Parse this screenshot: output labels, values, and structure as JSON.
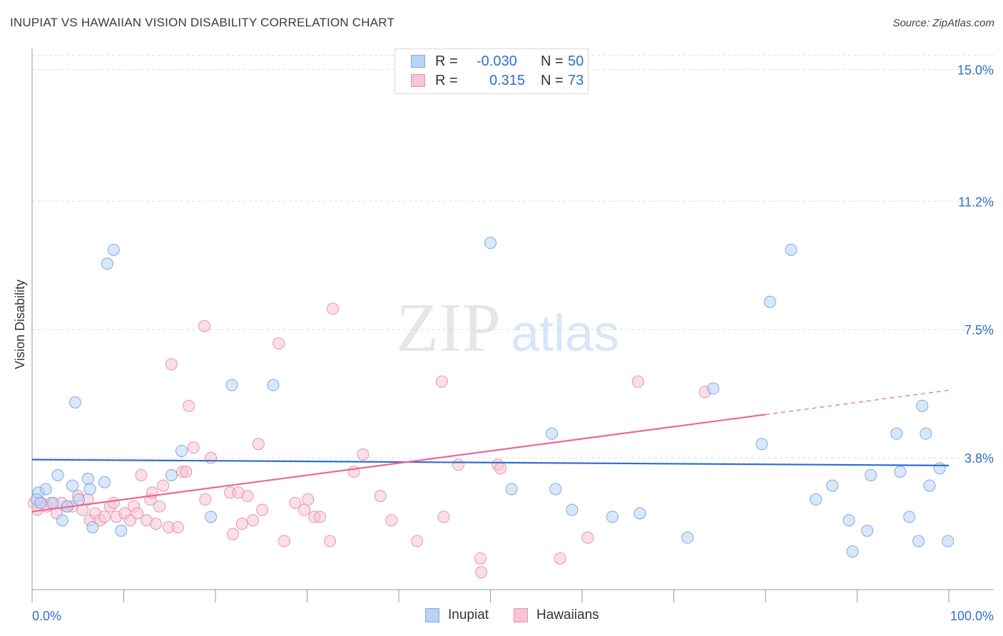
{
  "header": {
    "title": "INUPIAT VS HAWAIIAN VISION DISABILITY CORRELATION CHART",
    "source": "Source: ZipAtlas.com"
  },
  "watermark": {
    "zip": "ZIP",
    "atlas": "atlas"
  },
  "legend": {
    "rows": [
      {
        "r_label": "R =",
        "r_value": "-0.030",
        "n_label": "N =",
        "n_value": "50"
      },
      {
        "r_label": "R =",
        "r_value": "0.315",
        "n_label": "N =",
        "n_value": "73"
      }
    ]
  },
  "bottom_legend": {
    "series1": "Inupiat",
    "series2": "Hawaiians"
  },
  "colors": {
    "inupiat_fill": "#b9d3f5",
    "inupiat_stroke": "#7ea9e3",
    "inupiat_line": "#2f6fce",
    "hawaiian_fill": "#f6c4d4",
    "hawaiian_stroke": "#ea93b1",
    "hawaiian_line": "#e8689a",
    "tick_label": "#2f6fce",
    "grid": "#dcdcdc"
  },
  "chart_data": {
    "type": "scatter",
    "title": "INUPIAT VS HAWAIIAN VISION DISABILITY CORRELATION CHART",
    "xlabel": "",
    "ylabel": "Vision Disability",
    "xlim": [
      0,
      100
    ],
    "ylim": [
      0,
      15.4
    ],
    "x_tick_labels": [
      "0.0%",
      "100.0%"
    ],
    "y_ticks": [
      3.8,
      7.5,
      11.2,
      15.0
    ],
    "y_tick_labels": [
      "3.8%",
      "7.5%",
      "11.2%",
      "15.0%"
    ],
    "grid": true,
    "legend_placement": "top-center",
    "series": [
      {
        "name": "Inupiat",
        "r": -0.03,
        "n": 50,
        "trend": {
          "x": [
            0,
            100
          ],
          "y": [
            3.75,
            3.58
          ]
        },
        "points": [
          [
            0.7,
            2.8
          ],
          [
            1.5,
            2.9
          ],
          [
            2.3,
            2.5
          ],
          [
            2.8,
            3.3
          ],
          [
            3.3,
            2.0
          ],
          [
            3.8,
            2.4
          ],
          [
            4.4,
            3.0
          ],
          [
            4.7,
            5.4
          ],
          [
            5.1,
            2.6
          ],
          [
            6.1,
            3.2
          ],
          [
            6.3,
            2.9
          ],
          [
            6.6,
            1.8
          ],
          [
            7.9,
            3.1
          ],
          [
            8.2,
            9.4
          ],
          [
            8.9,
            9.8
          ],
          [
            9.7,
            1.7
          ],
          [
            15.2,
            3.3
          ],
          [
            16.3,
            4.0
          ],
          [
            19.5,
            2.1
          ],
          [
            21.8,
            5.9
          ],
          [
            26.3,
            5.9
          ],
          [
            50.0,
            10.0
          ],
          [
            52.3,
            2.9
          ],
          [
            56.7,
            4.5
          ],
          [
            57.1,
            2.9
          ],
          [
            58.9,
            2.3
          ],
          [
            63.3,
            2.1
          ],
          [
            66.3,
            2.2
          ],
          [
            71.5,
            1.5
          ],
          [
            74.3,
            5.8
          ],
          [
            79.6,
            4.2
          ],
          [
            80.5,
            8.3
          ],
          [
            82.8,
            9.8
          ],
          [
            85.5,
            2.6
          ],
          [
            87.3,
            3.0
          ],
          [
            89.1,
            2.0
          ],
          [
            89.5,
            1.1
          ],
          [
            91.1,
            1.7
          ],
          [
            91.5,
            3.3
          ],
          [
            94.3,
            4.5
          ],
          [
            94.7,
            3.4
          ],
          [
            95.7,
            2.1
          ],
          [
            96.7,
            1.4
          ],
          [
            97.1,
            5.3
          ],
          [
            97.5,
            4.5
          ],
          [
            97.9,
            3.0
          ],
          [
            99.0,
            3.5
          ],
          [
            99.9,
            1.4
          ],
          [
            0.5,
            2.6
          ],
          [
            0.9,
            2.5
          ]
        ]
      },
      {
        "name": "Hawaiians",
        "r": 0.315,
        "n": 73,
        "trend": {
          "x": [
            0,
            80
          ],
          "y": [
            2.25,
            5.05
          ],
          "dashed_to": {
            "x": 100,
            "y": 5.75
          }
        },
        "points": [
          [
            0.2,
            2.5
          ],
          [
            0.6,
            2.3
          ],
          [
            1.0,
            2.5
          ],
          [
            1.6,
            2.4
          ],
          [
            2.1,
            2.5
          ],
          [
            2.7,
            2.2
          ],
          [
            3.2,
            2.5
          ],
          [
            3.9,
            2.4
          ],
          [
            4.4,
            2.4
          ],
          [
            5.0,
            2.7
          ],
          [
            5.5,
            2.3
          ],
          [
            6.1,
            2.6
          ],
          [
            6.3,
            2.0
          ],
          [
            6.9,
            2.2
          ],
          [
            7.4,
            2.0
          ],
          [
            7.9,
            2.1
          ],
          [
            8.5,
            2.4
          ],
          [
            8.9,
            2.5
          ],
          [
            9.2,
            2.1
          ],
          [
            10.1,
            2.2
          ],
          [
            10.7,
            2.0
          ],
          [
            11.1,
            2.4
          ],
          [
            11.5,
            2.2
          ],
          [
            11.9,
            3.3
          ],
          [
            12.5,
            2.0
          ],
          [
            12.9,
            2.6
          ],
          [
            13.1,
            2.8
          ],
          [
            13.5,
            1.9
          ],
          [
            13.9,
            2.4
          ],
          [
            14.3,
            3.0
          ],
          [
            14.9,
            1.8
          ],
          [
            15.2,
            6.5
          ],
          [
            15.9,
            1.8
          ],
          [
            16.4,
            3.4
          ],
          [
            16.8,
            3.4
          ],
          [
            17.1,
            5.3
          ],
          [
            17.6,
            4.1
          ],
          [
            18.8,
            7.6
          ],
          [
            18.9,
            2.6
          ],
          [
            19.5,
            3.8
          ],
          [
            21.6,
            2.8
          ],
          [
            21.9,
            1.6
          ],
          [
            22.5,
            2.8
          ],
          [
            22.9,
            1.9
          ],
          [
            23.5,
            2.7
          ],
          [
            24.1,
            2.0
          ],
          [
            24.7,
            4.2
          ],
          [
            25.1,
            2.3
          ],
          [
            26.9,
            7.1
          ],
          [
            27.5,
            1.4
          ],
          [
            28.7,
            2.5
          ],
          [
            29.7,
            2.3
          ],
          [
            30.1,
            2.6
          ],
          [
            30.8,
            2.1
          ],
          [
            31.4,
            2.1
          ],
          [
            32.5,
            1.4
          ],
          [
            32.8,
            8.1
          ],
          [
            35.1,
            3.4
          ],
          [
            36.1,
            3.9
          ],
          [
            38.0,
            2.7
          ],
          [
            39.2,
            2.0
          ],
          [
            42.0,
            1.4
          ],
          [
            44.7,
            6.0
          ],
          [
            44.9,
            2.1
          ],
          [
            46.5,
            3.6
          ],
          [
            48.9,
            0.9
          ],
          [
            50.8,
            3.6
          ],
          [
            51.1,
            3.5
          ],
          [
            49.0,
            0.5
          ],
          [
            57.6,
            0.9
          ],
          [
            60.6,
            1.5
          ],
          [
            66.1,
            6.0
          ],
          [
            73.4,
            5.7
          ]
        ]
      }
    ]
  }
}
